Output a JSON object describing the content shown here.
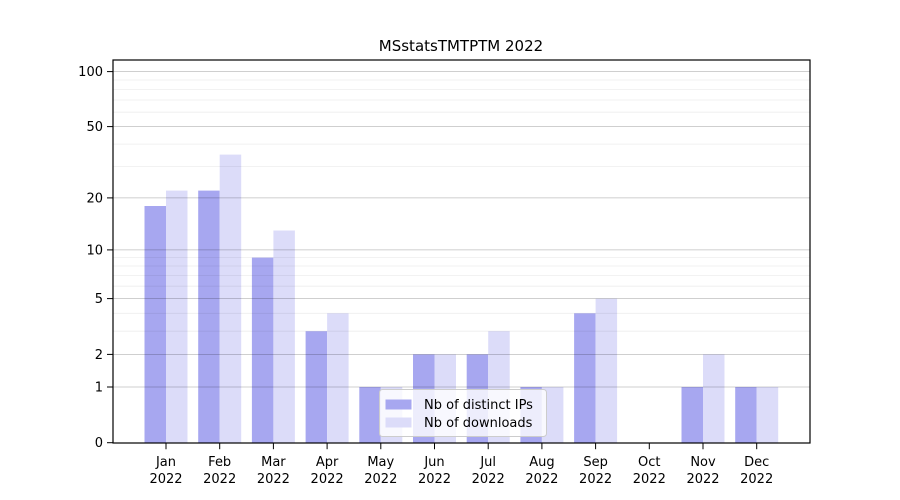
{
  "chart_data": {
    "type": "bar",
    "title": "MSstatsTMTPTM 2022",
    "categories": [
      "Jan",
      "Feb",
      "Mar",
      "Apr",
      "May",
      "Jun",
      "Jul",
      "Aug",
      "Sep",
      "Oct",
      "Nov",
      "Dec"
    ],
    "category_year": "2022",
    "series": [
      {
        "name": "Nb of distinct IPs",
        "color": "#a7a7f0",
        "values": [
          18,
          22,
          9,
          3,
          1,
          2,
          2,
          1,
          4,
          0,
          1,
          1
        ]
      },
      {
        "name": "Nb of downloads",
        "color": "#dcdcf9",
        "values": [
          22,
          35,
          13,
          4,
          1,
          2,
          3,
          1,
          5,
          0,
          2,
          1
        ]
      }
    ],
    "xlabel": "",
    "ylabel": "",
    "yscale": "log1p",
    "ylim": [
      0,
      115
    ],
    "y_major_ticks": [
      0,
      1,
      2,
      5,
      10,
      20,
      50,
      100
    ],
    "y_minor_gridlines": [
      3,
      4,
      6,
      7,
      8,
      9,
      30,
      40,
      60,
      70,
      80,
      90
    ],
    "grid": true,
    "grid_over_bars": true,
    "legend_position": "inside-bottom-center",
    "colors": {
      "major_grid": "rgba(0,0,0,0.25)",
      "minor_grid": "rgba(0,0,0,0.07)",
      "spine": "#000000",
      "legend_border": "#cccccc",
      "legend_bg": "rgba(255,255,255,0.8)"
    }
  }
}
